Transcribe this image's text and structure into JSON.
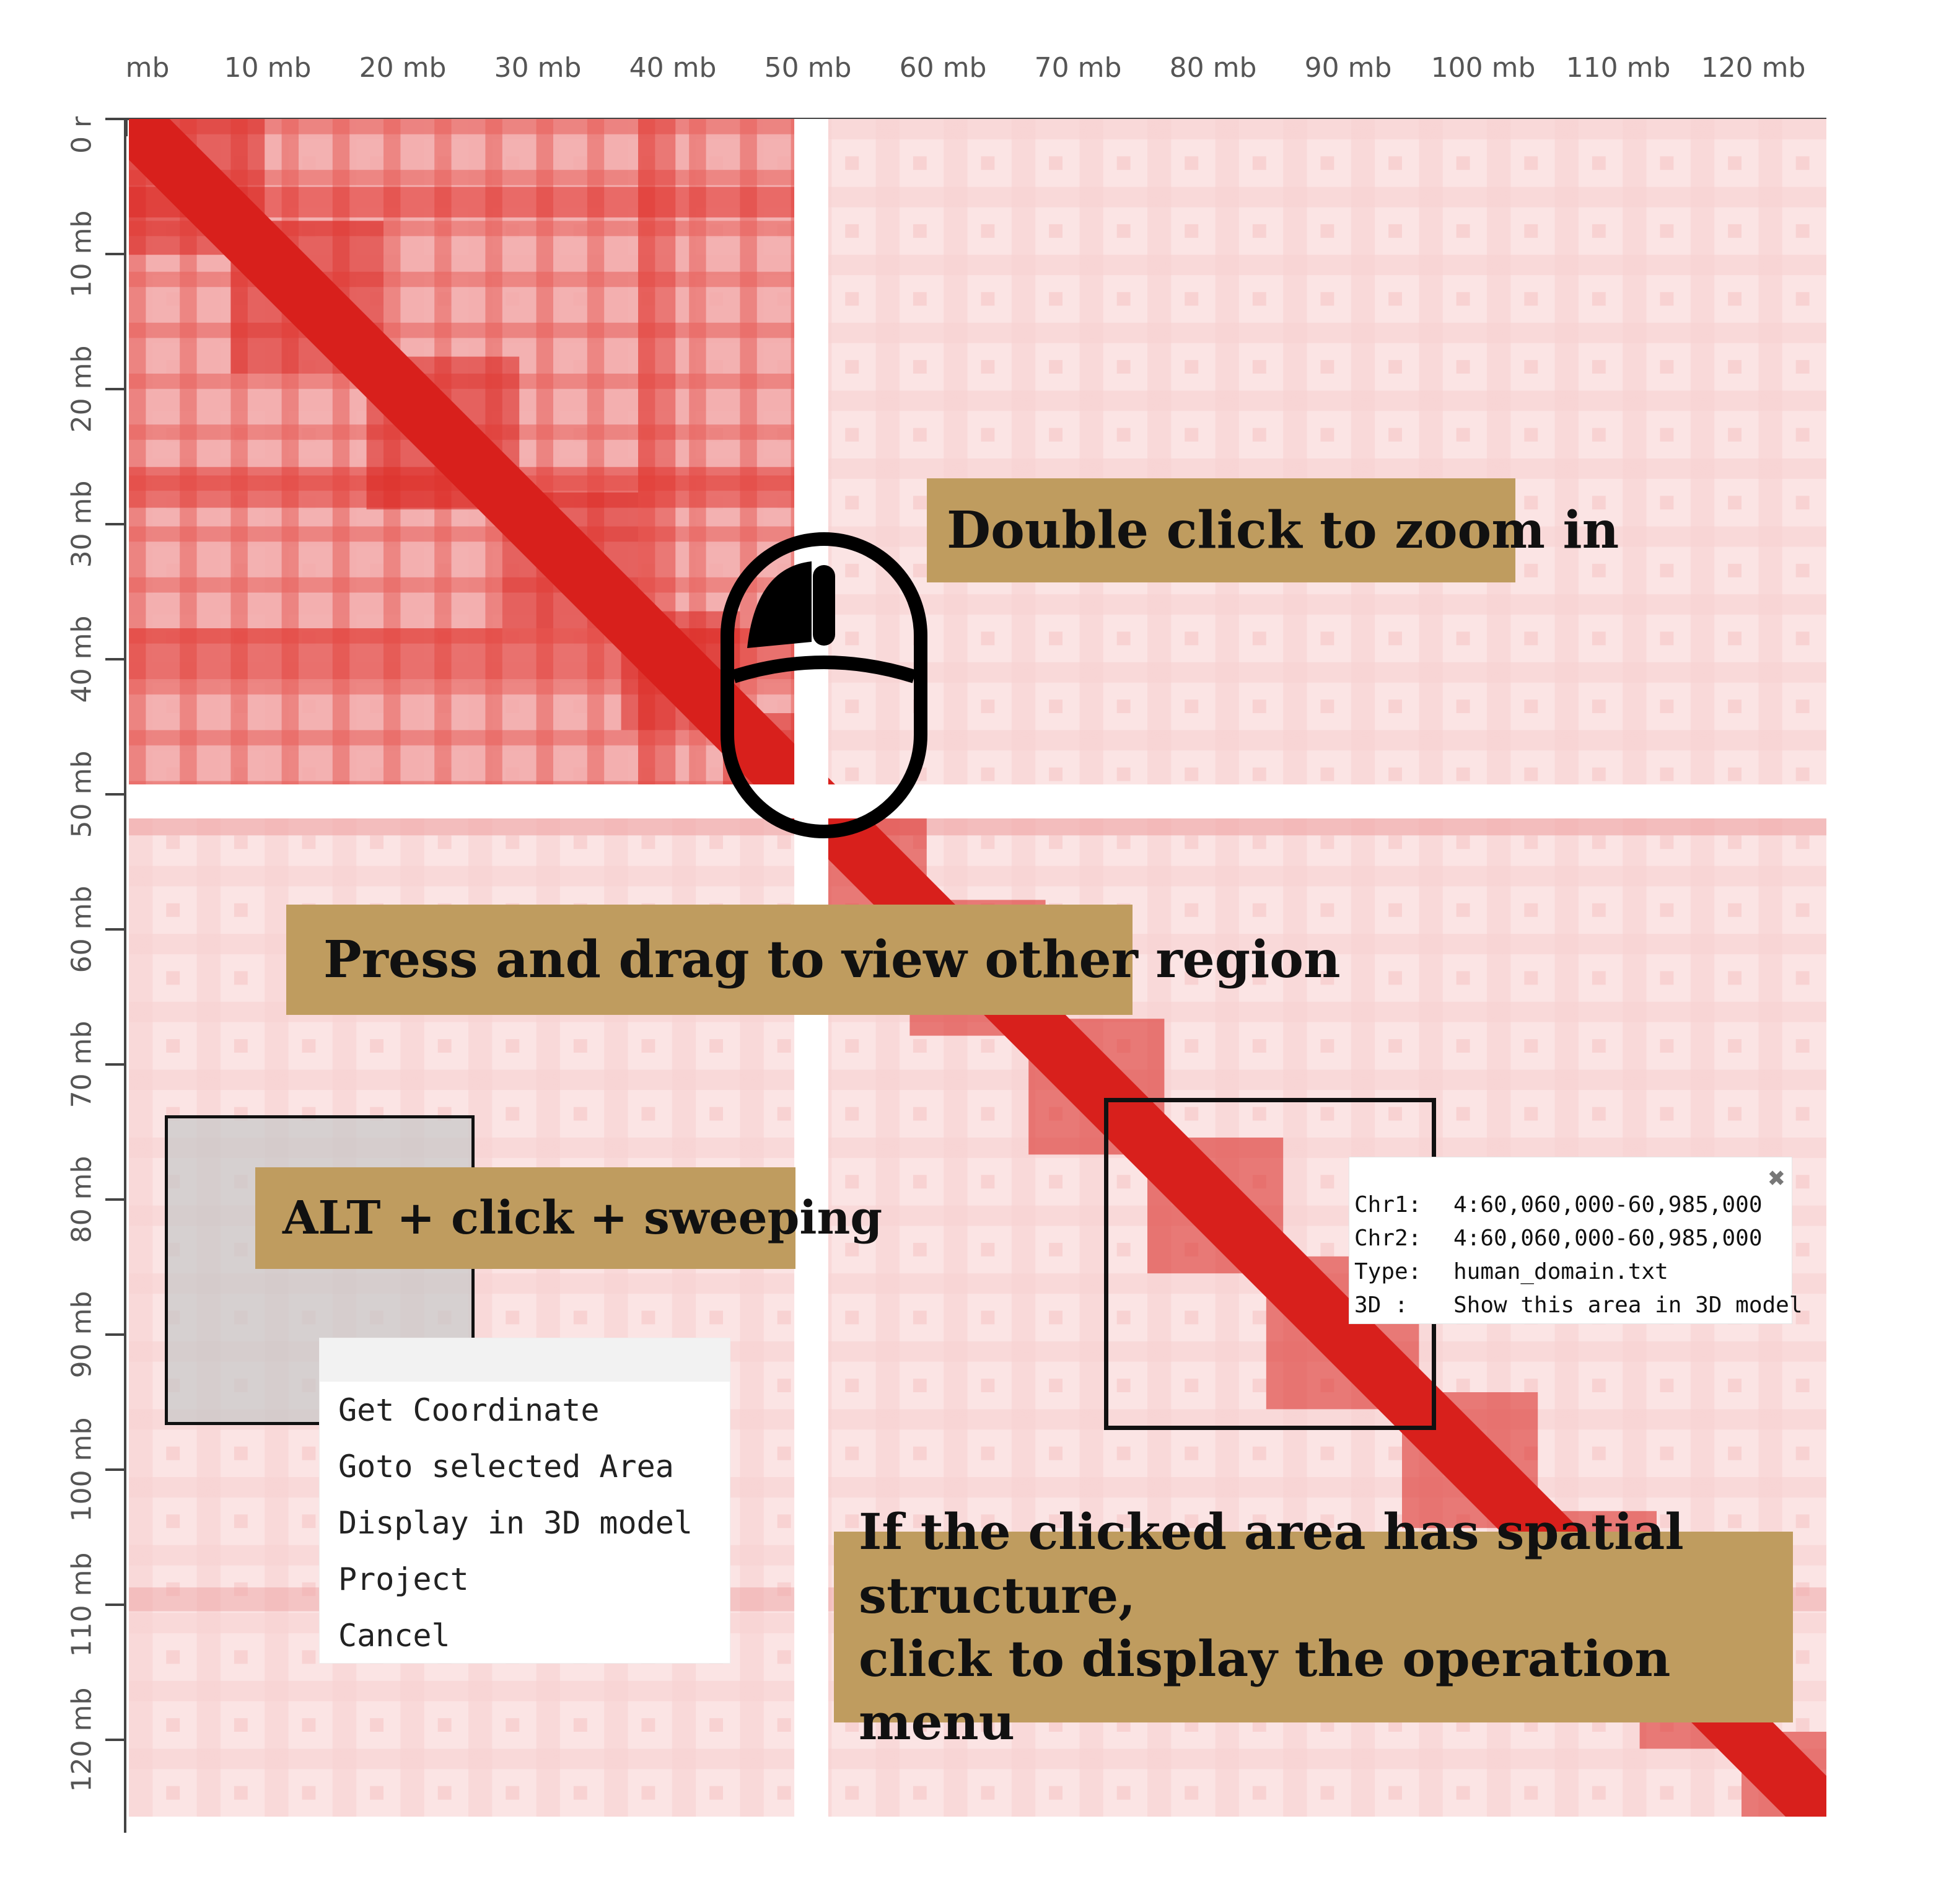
{
  "top_axis": {
    "ticks": [
      "mb",
      "10 mb",
      "20 mb",
      "30 mb",
      "40 mb",
      "50 mb",
      "60 mb",
      "70 mb",
      "80 mb",
      "90 mb",
      "100 mb",
      "110 mb",
      "120 mb"
    ]
  },
  "left_axis": {
    "ticks": [
      "0 r",
      "10 mb",
      "20 mb",
      "30 mb",
      "40 mb",
      "50 mb",
      "60 mb",
      "70 mb",
      "80 mb",
      "90 mb",
      "100 mb",
      "110 mb",
      "120 mb"
    ]
  },
  "heatmap": {
    "color": "#d8201c",
    "gap_mb": 50,
    "max_mb": 126
  },
  "callouts": {
    "zoom": "Double click to zoom in",
    "drag": "Press and drag to view other region",
    "alt": "ALT + click + sweeping",
    "menu_line1": "If the clicked area has spatial structure,",
    "menu_line2": "click to display the operation menu",
    "background": "#bf9c5f"
  },
  "icons": {
    "mouse": "mouse-icon",
    "close": "close-icon"
  },
  "context_menu": {
    "items": [
      "Get Coordinate",
      "Goto selected Area",
      "Display in 3D model",
      "Project",
      "Cancel"
    ]
  },
  "info_popup": {
    "close_glyph": "✖",
    "rows": [
      {
        "key": "Chr1:",
        "value": "4:60,060,000-60,985,000"
      },
      {
        "key": "Chr2:",
        "value": "4:60,060,000-60,985,000"
      },
      {
        "key": "Type:",
        "value": "human_domain.txt"
      },
      {
        "key": "3D :",
        "value": "Show this area in 3D model"
      }
    ]
  }
}
